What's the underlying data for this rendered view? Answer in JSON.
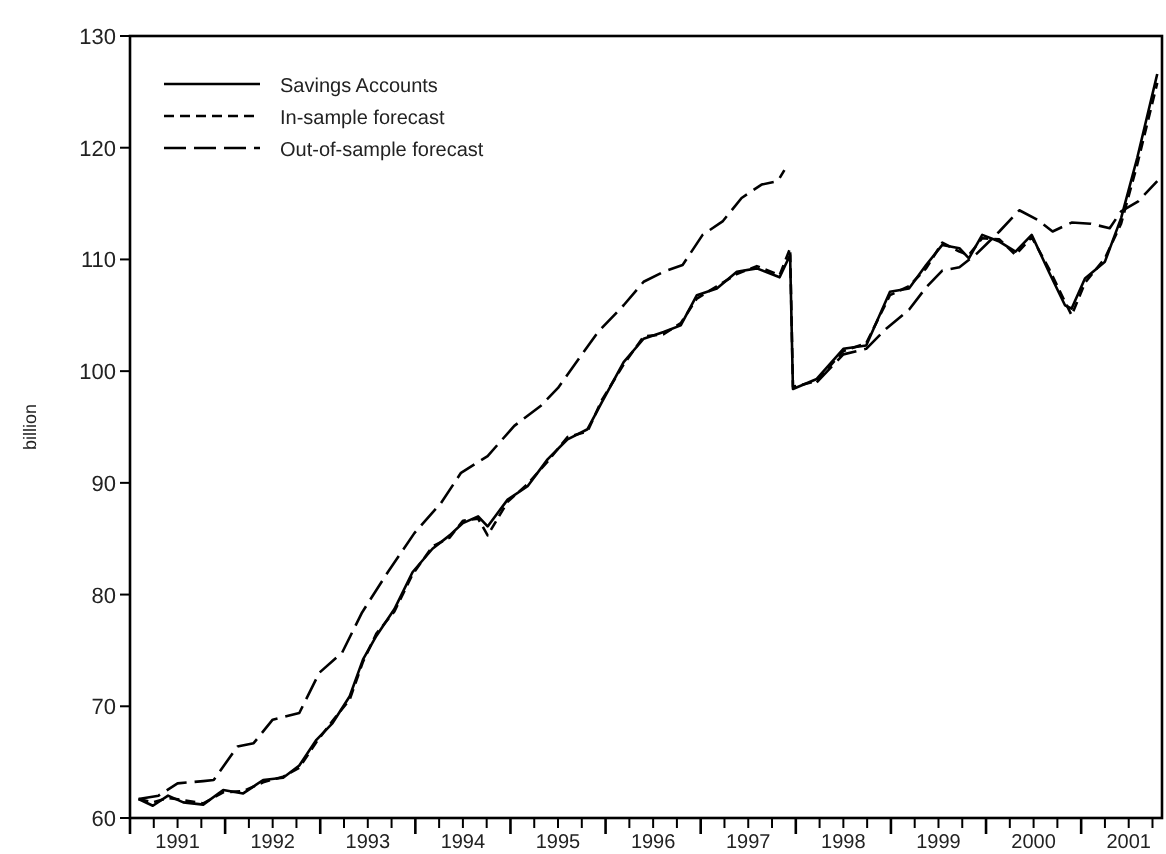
{
  "chart_data": {
    "type": "line",
    "ylabel": "billion",
    "xlim": [
      1991,
      2001.85
    ],
    "ylim": [
      60,
      130
    ],
    "yticks": [
      60,
      70,
      80,
      90,
      100,
      110,
      120,
      130
    ],
    "xticks": [
      {
        "value": 1991,
        "label": null
      },
      {
        "value": 1991.25,
        "label": null
      },
      {
        "value": 1991.5,
        "label": "1991"
      },
      {
        "value": 1991.75,
        "label": null
      },
      {
        "value": 1992,
        "label": null
      },
      {
        "value": 1992.25,
        "label": null
      },
      {
        "value": 1992.5,
        "label": "1992"
      },
      {
        "value": 1992.75,
        "label": null
      },
      {
        "value": 1993,
        "label": null
      },
      {
        "value": 1993.25,
        "label": null
      },
      {
        "value": 1993.5,
        "label": "1993"
      },
      {
        "value": 1993.75,
        "label": null
      },
      {
        "value": 1994,
        "label": null
      },
      {
        "value": 1994.25,
        "label": null
      },
      {
        "value": 1994.5,
        "label": "1994"
      },
      {
        "value": 1994.75,
        "label": null
      },
      {
        "value": 1995,
        "label": null
      },
      {
        "value": 1995.25,
        "label": null
      },
      {
        "value": 1995.5,
        "label": "1995"
      },
      {
        "value": 1995.75,
        "label": null
      },
      {
        "value": 1996,
        "label": null
      },
      {
        "value": 1996.25,
        "label": null
      },
      {
        "value": 1996.5,
        "label": "1996"
      },
      {
        "value": 1996.75,
        "label": null
      },
      {
        "value": 1997,
        "label": null
      },
      {
        "value": 1997.25,
        "label": null
      },
      {
        "value": 1997.5,
        "label": "1997"
      },
      {
        "value": 1997.75,
        "label": null
      },
      {
        "value": 1998,
        "label": null
      },
      {
        "value": 1998.25,
        "label": null
      },
      {
        "value": 1998.5,
        "label": "1998"
      },
      {
        "value": 1998.75,
        "label": null
      },
      {
        "value": 1999,
        "label": null
      },
      {
        "value": 1999.25,
        "label": null
      },
      {
        "value": 1999.5,
        "label": "1999"
      },
      {
        "value": 1999.75,
        "label": null
      },
      {
        "value": 2000,
        "label": null
      },
      {
        "value": 2000.25,
        "label": null
      },
      {
        "value": 2000.5,
        "label": "2000"
      },
      {
        "value": 2000.75,
        "label": null
      },
      {
        "value": 2001,
        "label": null
      },
      {
        "value": 2001.25,
        "label": null
      },
      {
        "value": 2001.5,
        "label": "2001"
      },
      {
        "value": 2001.75,
        "label": null
      }
    ],
    "grid": false,
    "legend": "top left",
    "series": [
      {
        "name": "Savings Accounts",
        "color": "#000000",
        "line_style": "solid",
        "x": [
          1991.09,
          1991.24,
          1991.4,
          1991.56,
          1991.77,
          1991.98,
          1992.19,
          1992.4,
          1992.61,
          1992.78,
          1992.96,
          1993.13,
          1993.31,
          1993.45,
          1993.59,
          1993.78,
          1993.97,
          1994.18,
          1994.36,
          1994.5,
          1994.66,
          1994.76,
          1994.97,
          1995.18,
          1995.39,
          1995.6,
          1995.81,
          1995.96,
          1996.19,
          1996.4,
          1996.61,
          1996.79,
          1996.96,
          1997.17,
          1997.38,
          1997.59,
          1997.83,
          1997.94,
          1997.97,
          1998.22,
          1998.5,
          1998.74,
          1998.99,
          1999.19,
          1999.37,
          1999.54,
          1999.72,
          1999.82,
          1999.96,
          2000.14,
          2000.31,
          2000.48,
          2000.66,
          2000.83,
          2000.9,
          2001.04,
          2001.25,
          2001.42,
          2001.59,
          2001.8
        ],
        "values": [
          61.7,
          61.1,
          62.0,
          61.4,
          61.2,
          62.5,
          62.2,
          63.4,
          63.6,
          64.7,
          67.0,
          68.5,
          70.9,
          74.2,
          76.3,
          78.7,
          82.0,
          84.1,
          85.3,
          86.4,
          87.0,
          86.1,
          88.5,
          89.7,
          92.1,
          93.9,
          94.8,
          97.2,
          100.8,
          102.9,
          103.5,
          104.1,
          106.8,
          107.4,
          108.9,
          109.2,
          108.4,
          110.4,
          98.4,
          99.3,
          102.0,
          102.3,
          107.1,
          107.4,
          109.5,
          111.3,
          111.0,
          110.1,
          112.2,
          111.6,
          110.7,
          112.2,
          108.9,
          105.9,
          105.6,
          108.3,
          109.8,
          113.7,
          119.1,
          126.6
        ]
      },
      {
        "name": "In-sample forecast",
        "color": "#000000",
        "line_style": "dashed",
        "x": [
          1991.09,
          1991.24,
          1991.4,
          1991.56,
          1991.77,
          1991.98,
          1992.19,
          1992.4,
          1992.61,
          1992.78,
          1992.96,
          1993.13,
          1993.31,
          1993.45,
          1993.59,
          1993.78,
          1993.97,
          1994.18,
          1994.36,
          1994.5,
          1994.66,
          1994.76,
          1994.97,
          1995.18,
          1995.39,
          1995.6,
          1995.81,
          1995.96,
          1996.19,
          1996.4,
          1996.61,
          1996.79,
          1996.96,
          1997.17,
          1997.38,
          1997.59,
          1997.83,
          1997.94,
          1997.97,
          1998.22,
          1998.5,
          1998.74,
          1998.99,
          1999.19,
          1999.37,
          1999.54,
          1999.72,
          1999.82,
          1999.96,
          2000.14,
          2000.31,
          2000.48,
          2000.66,
          2000.83,
          2000.9,
          2001.04,
          2001.25,
          2001.42,
          2001.59,
          2001.8
        ],
        "values": [
          61.7,
          61.4,
          61.8,
          61.6,
          61.3,
          62.3,
          62.4,
          63.2,
          63.7,
          64.5,
          66.8,
          68.7,
          70.6,
          74.0,
          76.5,
          78.5,
          81.8,
          84.3,
          85.1,
          86.6,
          86.8,
          85.3,
          88.3,
          89.9,
          91.9,
          94.1,
          94.6,
          97.4,
          100.6,
          103.1,
          103.3,
          104.3,
          106.5,
          107.6,
          108.7,
          109.4,
          108.6,
          111.0,
          98.6,
          99.1,
          101.8,
          102.5,
          106.8,
          107.6,
          109.2,
          111.5,
          110.7,
          110.4,
          111.9,
          111.8,
          110.4,
          112.0,
          109.2,
          106.2,
          105.0,
          107.9,
          110.1,
          113.2,
          118.5,
          125.8
        ]
      },
      {
        "name": "Out-of-sample forecast",
        "color": "#000000",
        "line_style": "longdash",
        "x": [
          1991.09,
          1991.3,
          1991.5,
          1991.77,
          1991.88,
          1992.13,
          1992.3,
          1992.5,
          1992.78,
          1992.99,
          1993.23,
          1993.44,
          1993.71,
          1993.99,
          1994.27,
          1994.48,
          1994.76,
          1995.04,
          1995.32,
          1995.5,
          1995.92,
          1996.19,
          1996.4,
          1996.61,
          1996.81,
          1997.02,
          1997.23,
          1997.43,
          1997.64,
          1997.81,
          1997.88,
          1997.97,
          1998.22,
          1998.5,
          1998.74,
          1998.95,
          1999.19,
          1999.37,
          1999.54,
          1999.72,
          1999.9,
          2000.14,
          2000.35,
          2000.55,
          2000.7,
          2000.9,
          2001.1,
          2001.3,
          2001.42,
          2001.6,
          2001.8
        ],
        "values": [
          61.7,
          62.0,
          63.1,
          63.3,
          63.4,
          66.4,
          66.7,
          68.8,
          69.4,
          73.0,
          74.8,
          78.4,
          82.0,
          85.5,
          88.2,
          90.9,
          92.4,
          95.1,
          96.9,
          98.5,
          103.5,
          105.9,
          108.0,
          108.9,
          109.5,
          112.2,
          113.4,
          115.5,
          116.7,
          117.0,
          118.0,
          null,
          99.0,
          101.5,
          102.0,
          103.8,
          105.5,
          107.5,
          109.0,
          109.3,
          110.5,
          112.5,
          114.4,
          113.5,
          112.5,
          113.3,
          113.2,
          112.8,
          114.3,
          115.2,
          117.0
        ]
      }
    ]
  }
}
